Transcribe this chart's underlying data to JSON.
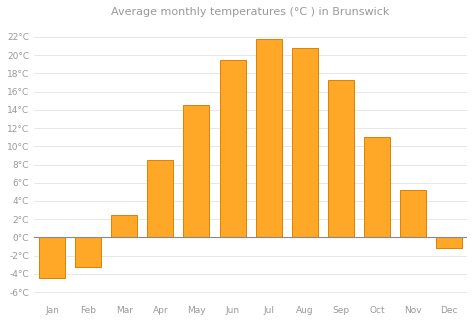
{
  "title": "Average monthly temperatures (°C ) in Brunswick",
  "months": [
    "Jan",
    "Feb",
    "Mar",
    "Apr",
    "May",
    "Jun",
    "Jul",
    "Aug",
    "Sep",
    "Oct",
    "Nov",
    "Dec"
  ],
  "values": [
    -4.5,
    -3.2,
    2.5,
    8.5,
    14.5,
    19.5,
    21.8,
    20.8,
    17.3,
    11.0,
    5.2,
    -1.2
  ],
  "bar_color": "#FFA726",
  "bar_edge_color": "#E08000",
  "background_color": "#FFFFFF",
  "plot_bg_color": "#FFFFFF",
  "grid_color": "#DDDDDD",
  "ytick_values": [
    -6,
    -4,
    -2,
    0,
    2,
    4,
    6,
    8,
    10,
    12,
    14,
    16,
    18,
    20,
    22
  ],
  "ytick_labels": [
    "-6°C",
    "-4°C",
    "-2°C",
    "0°C",
    "2°C",
    "4°C",
    "6°C",
    "8°C",
    "10°C",
    "12°C",
    "14°C",
    "16°C",
    "18°C",
    "20°C",
    "22°C"
  ],
  "ylim": [
    -7,
    23.5
  ],
  "title_fontsize": 8,
  "tick_fontsize": 6.5,
  "text_color": "#999999",
  "zero_line_color": "#888888",
  "bar_width": 0.72
}
